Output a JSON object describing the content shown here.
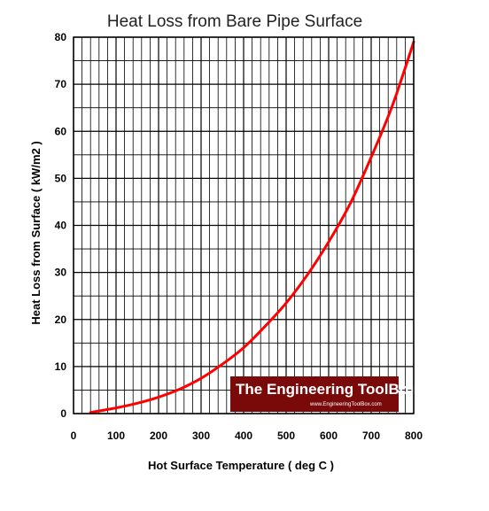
{
  "chart_data": {
    "type": "line",
    "title": "Heat Loss from Bare Pipe Surface",
    "xlabel": "Hot Surface Temperature ( deg C )",
    "ylabel": "Heat Loss from Surface ( kW/m2 )",
    "xlim": [
      0,
      800
    ],
    "ylim": [
      0,
      80
    ],
    "x_ticks": [
      "0",
      "100",
      "200",
      "300",
      "400",
      "500",
      "600",
      "700",
      "800"
    ],
    "y_ticks": [
      "0",
      "10",
      "20",
      "30",
      "40",
      "50",
      "60",
      "70",
      "80"
    ],
    "grid": true,
    "series": [
      {
        "color": "#ff0000",
        "x": [
          40,
          50,
          100,
          150,
          200,
          250,
          300,
          350,
          400,
          450,
          500,
          550,
          600,
          650,
          700,
          750,
          800
        ],
        "y": [
          0.2,
          0.4,
          1.2,
          2.2,
          3.5,
          5.2,
          7.5,
          10.5,
          14.0,
          18.5,
          23.5,
          29.5,
          36.5,
          44.5,
          54.5,
          65.5,
          79.0
        ]
      }
    ]
  },
  "watermark": {
    "title": "The Engineering ToolBox",
    "url": "www.EngineeringToolBox.com"
  }
}
